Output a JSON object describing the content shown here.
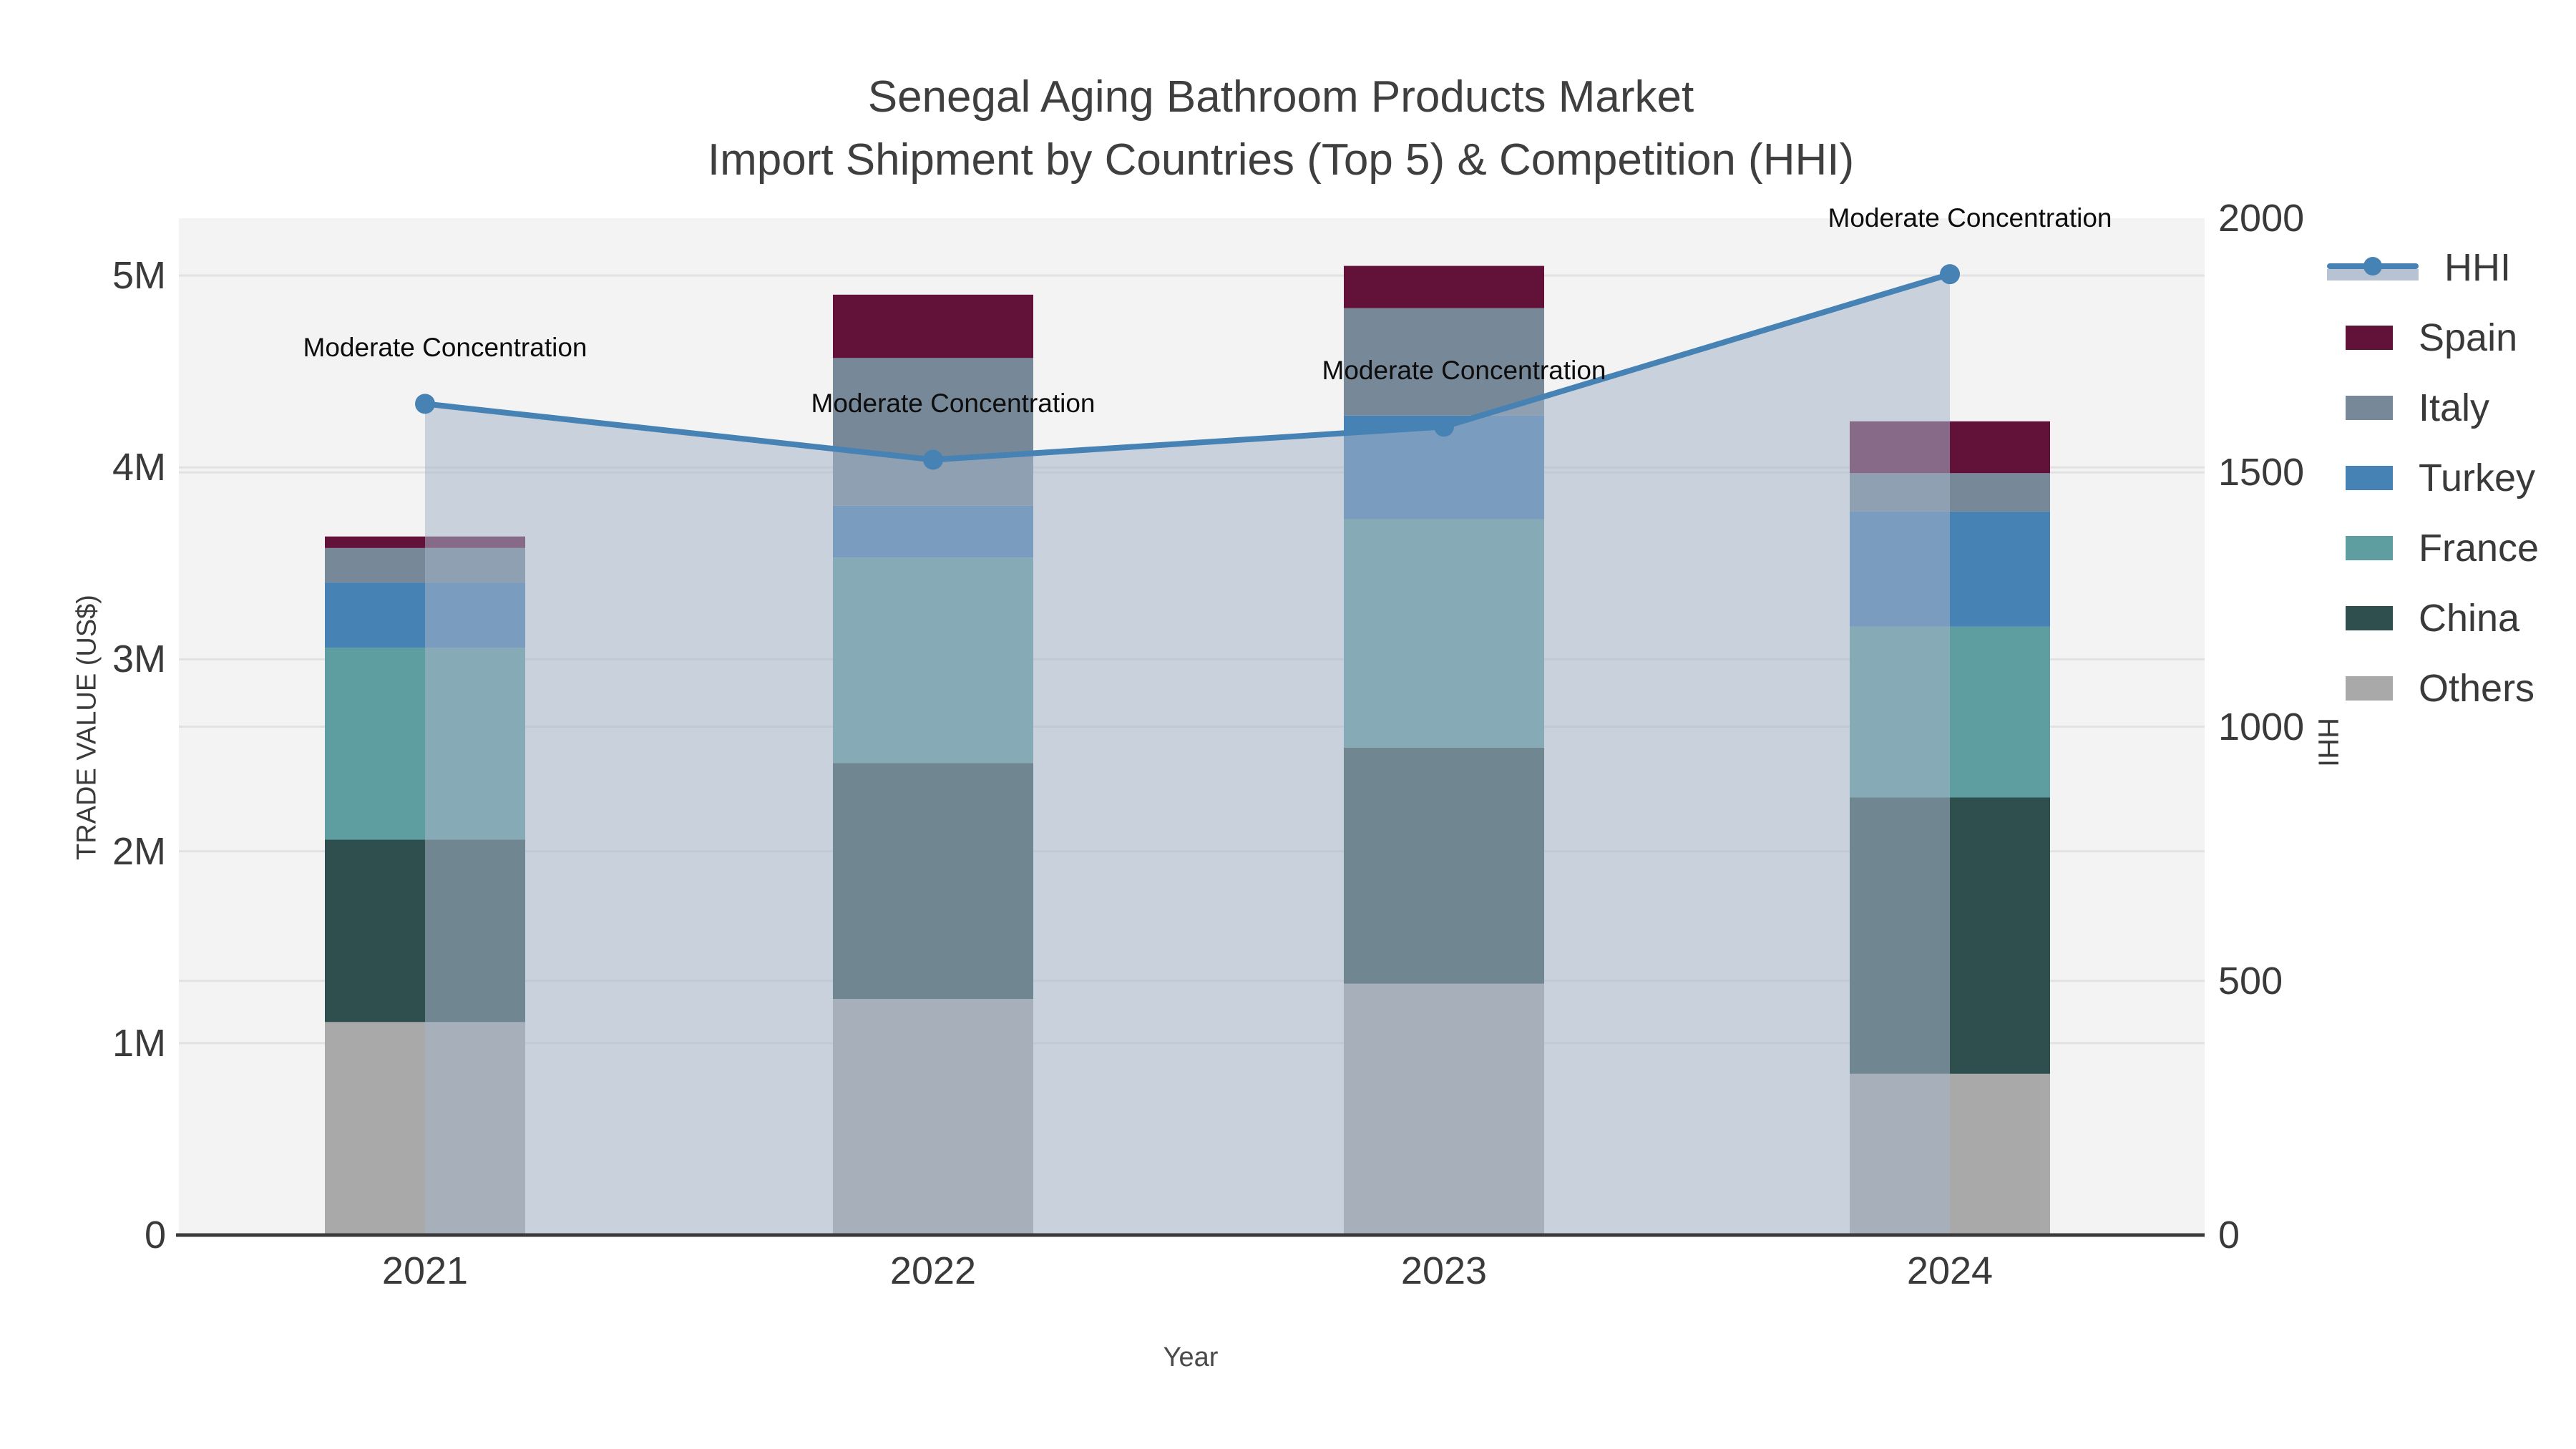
{
  "chart_data": {
    "type": "composite-stacked-bar-line",
    "title_line1": "Senegal Aging Bathroom Products Market",
    "title_line2": "Import Shipment by Countries (Top 5) & Competition (HHI)",
    "xlabel": "Year",
    "ylabel_left": "TRADE VALUE (US$)",
    "ylabel_right": "HHI",
    "categories": [
      "2021",
      "2022",
      "2023",
      "2024"
    ],
    "bar_value_unit": "millions US$",
    "stack_order_bottom_to_top": [
      "Others",
      "China",
      "France",
      "Turkey",
      "Italy",
      "Spain"
    ],
    "series": [
      {
        "name": "Spain",
        "color": "#621139",
        "values": [
          0.06,
          0.33,
          0.22,
          0.27
        ]
      },
      {
        "name": "Italy",
        "color": "#778899",
        "values": [
          0.18,
          0.77,
          0.56,
          0.2
        ]
      },
      {
        "name": "Turkey",
        "color": "#4682b4",
        "values": [
          0.34,
          0.27,
          0.54,
          0.6
        ]
      },
      {
        "name": "France",
        "color": "#5f9ea0",
        "values": [
          1.0,
          1.07,
          1.19,
          0.89
        ]
      },
      {
        "name": "China",
        "color": "#2f4f4f",
        "values": [
          0.95,
          1.23,
          1.23,
          1.44
        ]
      },
      {
        "name": "Others",
        "color": "#a9a9a9",
        "values": [
          1.11,
          1.23,
          1.31,
          0.84
        ]
      }
    ],
    "bar_totals_m": [
      3.64,
      4.9,
      5.05,
      4.24
    ],
    "line_series": {
      "name": "HHI",
      "color": "#4682b4",
      "area_fill_color": "rgba(165,180,200,0.55)",
      "values": [
        1635,
        1525,
        1590,
        1890
      ],
      "annotations": [
        "Moderate Concentration",
        "Moderate Concentration",
        "Moderate Concentration",
        "Moderate Concentration"
      ]
    },
    "left_axis": {
      "ticks": [
        "0",
        "1M",
        "2M",
        "3M",
        "4M",
        "5M"
      ],
      "tick_values_m": [
        0,
        1,
        2,
        3,
        4,
        5
      ]
    },
    "right_axis": {
      "ticks": [
        "0",
        "500",
        "1000",
        "1500",
        "2000"
      ],
      "tick_values": [
        0,
        500,
        1000,
        1500,
        2000
      ],
      "max": 2000
    },
    "legend_entries": [
      "HHI",
      "Spain",
      "Italy",
      "Turkey",
      "France",
      "China",
      "Others"
    ],
    "legend_position": "right",
    "grid": "horizontal",
    "plot_bg_color": "#f3f3f3",
    "gridline_color": "#e2e2e2",
    "axis_line_color": "#3a3a3a",
    "text_color": "#3a3a3a"
  }
}
